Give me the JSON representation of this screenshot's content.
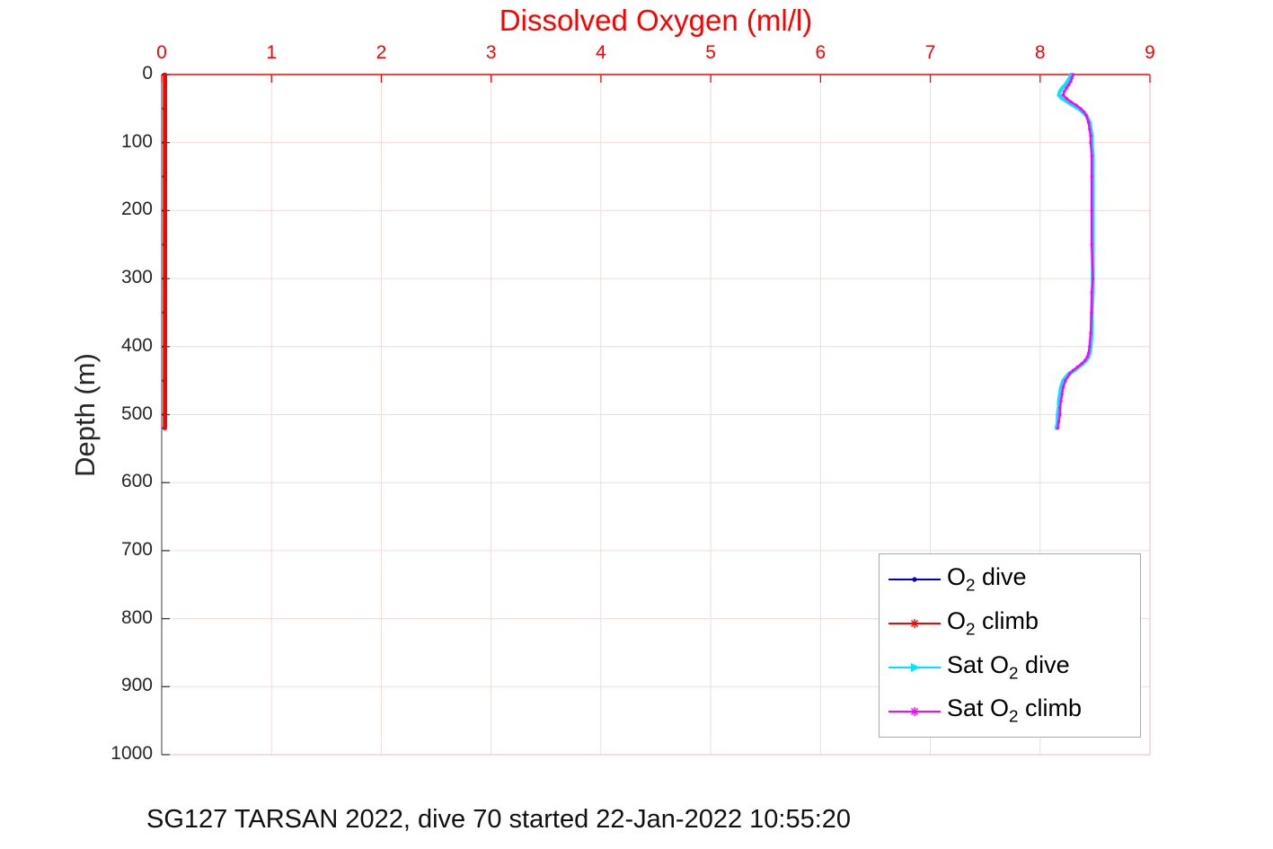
{
  "figure": {
    "title": "Dissolved Oxygen (ml/l)",
    "title_color": "#ff0000",
    "caption": "SG127 TARSAN 2022, dive 70 started 22-Jan-2022 10:55:20"
  },
  "chart_data": {
    "type": "line",
    "title": "Dissolved Oxygen (ml/l)",
    "xlabel": "",
    "ylabel": "Depth (m)",
    "grid": true,
    "x_axis": {
      "position": "top",
      "color": "#ff0000",
      "min": 0,
      "max": 9,
      "ticks": [
        0,
        1,
        2,
        3,
        4,
        5,
        6,
        7,
        8,
        9
      ]
    },
    "y_axis": {
      "label": "Depth (m)",
      "reversed": true,
      "min": 0,
      "max": 1000,
      "ticks": [
        0,
        100,
        200,
        300,
        400,
        500,
        600,
        700,
        800,
        900,
        1000
      ]
    },
    "series": [
      {
        "id": "o2-dive",
        "name": "O2 dive",
        "color": "#0000cc",
        "marker": "dot",
        "depth": [
          0,
          50,
          100,
          150,
          200,
          250,
          300,
          350,
          400,
          450,
          500,
          520
        ],
        "values": [
          0.02,
          0.02,
          0.02,
          0.02,
          0.02,
          0.02,
          0.02,
          0.02,
          0.02,
          0.02,
          0.02,
          0.02
        ]
      },
      {
        "id": "o2-climb",
        "name": "O2 climb",
        "color": "#ff0000",
        "marker": "asterisk",
        "depth": [
          0,
          50,
          100,
          150,
          200,
          250,
          300,
          350,
          400,
          450,
          500,
          520
        ],
        "values": [
          0.03,
          0.03,
          0.03,
          0.03,
          0.03,
          0.03,
          0.03,
          0.03,
          0.03,
          0.03,
          0.03,
          0.03
        ]
      },
      {
        "id": "sat-o2-dive",
        "name": "Sat O2 dive",
        "color": "#00e5ff",
        "marker": "triangle",
        "depth": [
          0,
          5,
          10,
          15,
          20,
          25,
          30,
          35,
          40,
          45,
          50,
          55,
          60,
          70,
          80,
          90,
          100,
          120,
          150,
          200,
          250,
          300,
          320,
          350,
          380,
          400,
          410,
          415,
          420,
          425,
          430,
          435,
          440,
          450,
          460,
          470,
          480,
          490,
          500,
          510,
          520
        ],
        "values": [
          8.28,
          8.27,
          8.25,
          8.23,
          8.2,
          8.18,
          8.17,
          8.2,
          8.25,
          8.3,
          8.35,
          8.39,
          8.42,
          8.45,
          8.46,
          8.47,
          8.47,
          8.48,
          8.48,
          8.48,
          8.48,
          8.48,
          8.48,
          8.47,
          8.47,
          8.46,
          8.45,
          8.44,
          8.42,
          8.39,
          8.35,
          8.31,
          8.26,
          8.21,
          8.19,
          8.18,
          8.17,
          8.17,
          8.16,
          8.16,
          8.15
        ]
      },
      {
        "id": "sat-o2-climb",
        "name": "Sat O2 climb",
        "color": "#ff00ff",
        "marker": "asterisk",
        "depth": [
          0,
          5,
          10,
          15,
          20,
          25,
          30,
          35,
          40,
          45,
          50,
          55,
          60,
          70,
          80,
          90,
          100,
          120,
          150,
          200,
          250,
          300,
          320,
          350,
          380,
          400,
          410,
          415,
          420,
          425,
          430,
          435,
          440,
          450,
          460,
          470,
          480,
          490,
          500,
          510,
          520
        ],
        "values": [
          8.3,
          8.29,
          8.28,
          8.26,
          8.24,
          8.22,
          8.21,
          8.24,
          8.28,
          8.33,
          8.37,
          8.4,
          8.42,
          8.44,
          8.45,
          8.46,
          8.46,
          8.47,
          8.47,
          8.47,
          8.47,
          8.48,
          8.47,
          8.47,
          8.46,
          8.45,
          8.44,
          8.43,
          8.41,
          8.38,
          8.34,
          8.3,
          8.27,
          8.23,
          8.21,
          8.2,
          8.19,
          8.18,
          8.18,
          8.17,
          8.16
        ]
      }
    ],
    "legend": {
      "position": "lower right",
      "entries": [
        {
          "pre": "O",
          "sub": "2",
          "post": " dive",
          "color": "#0000cc",
          "marker": "dot"
        },
        {
          "pre": "O",
          "sub": "2",
          "post": " climb",
          "color": "#ff0000",
          "marker": "asterisk"
        },
        {
          "pre": "Sat O",
          "sub": "2",
          "post": " dive",
          "color": "#00e5ff",
          "marker": "triangle"
        },
        {
          "pre": "Sat O",
          "sub": "2",
          "post": " climb",
          "color": "#ff00ff",
          "marker": "asterisk"
        }
      ]
    }
  }
}
